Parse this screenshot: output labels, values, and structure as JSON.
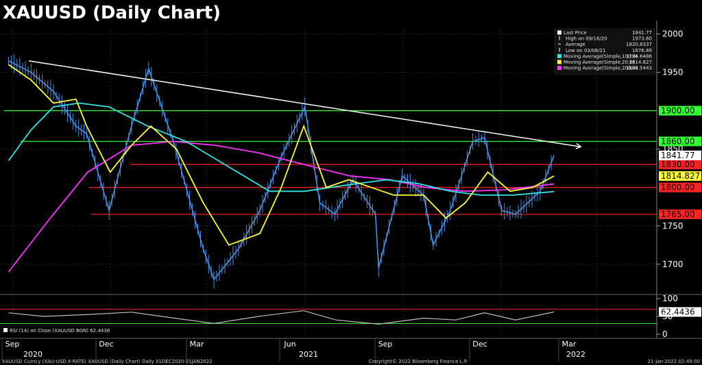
{
  "title": "XAUUSD (Daily Chart)",
  "footer": {
    "left": "XAUUSD Curncy (XAU-USD X-RATE) XAUUSD (Daily Chart)  Daily 31DEC2020-21JAN2022",
    "center": "Copyright© 2022 Bloomberg Finance L.P.",
    "right": "21-Jan-2022 02:49:00"
  },
  "legend": [
    {
      "label": "Last Price",
      "value": "1841.77",
      "marker": "box",
      "color": "#ffffff"
    },
    {
      "label": "High on 09/16/20",
      "value": "1973.60",
      "marker": "tick",
      "color": "#ffffff"
    },
    {
      "label": "Average",
      "value": "1820.8337",
      "marker": "dash",
      "color": "#ffffff"
    },
    {
      "label": "Low on 03/08/21",
      "value": "1676.89",
      "marker": "tick",
      "color": "#ffffff"
    },
    {
      "label": "Moving Average(Simple,100,0)",
      "value": "1794.6486",
      "marker": "box",
      "color": "#2ee6e6"
    },
    {
      "label": "Moving Average(Simple,20,0)",
      "value": "1814.827",
      "marker": "box",
      "color": "#ffff33"
    },
    {
      "label": "Moving Average(Simple,200,0)",
      "value": "1804.5443",
      "marker": "box",
      "color": "#ff33ff"
    }
  ],
  "rsi_label": "RSI (14)  on Close (XAUUSD BGN) 62.4436",
  "colors": {
    "background": "#000000",
    "price": "#4a90e2",
    "ma20": "#ffff33",
    "ma100": "#2ee6e6",
    "ma200": "#ff33ff",
    "resistance": "#33ff33",
    "support": "#ff2222",
    "trendline": "#ffffff",
    "rsi": "#bfbfbf"
  },
  "chart_data": {
    "type": "line",
    "price_axis": {
      "ticks": [
        "2000",
        "1950",
        "1850",
        "1750",
        "1700"
      ],
      "range": [
        1665,
        2005
      ]
    },
    "rsi_axis": {
      "ticks": [
        "100",
        "50",
        "0"
      ],
      "range": [
        0,
        100
      ]
    },
    "x_months": [
      "Sep",
      "Dec",
      "Mar",
      "Jun",
      "Sep",
      "Dec",
      "Mar"
    ],
    "x_years": [
      "2020",
      "2021",
      "2022"
    ],
    "close": {
      "x": [
        "2020-08-28",
        "2020-09-18",
        "2020-10-09",
        "2020-10-30",
        "2020-11-09",
        "2020-11-30",
        "2020-12-21",
        "2021-01-06",
        "2021-01-29",
        "2021-02-26",
        "2021-03-08",
        "2021-03-31",
        "2021-04-20",
        "2021-05-10",
        "2021-06-01",
        "2021-06-15",
        "2021-06-29",
        "2021-07-16",
        "2021-08-06",
        "2021-08-09",
        "2021-08-31",
        "2021-09-20",
        "2021-09-29",
        "2021-10-15",
        "2021-11-05",
        "2021-11-16",
        "2021-12-02",
        "2021-12-15",
        "2022-01-07",
        "2022-01-20"
      ],
      "y": [
        1965,
        1950,
        1925,
        1880,
        1870,
        1770,
        1880,
        1955,
        1860,
        1720,
        1680,
        1720,
        1770,
        1840,
        1905,
        1780,
        1765,
        1810,
        1765,
        1695,
        1815,
        1790,
        1725,
        1770,
        1860,
        1865,
        1770,
        1765,
        1795,
        1841.77
      ]
    },
    "ma20": {
      "x": [
        "2020-08-28",
        "2020-09-18",
        "2020-10-09",
        "2020-10-30",
        "2020-11-09",
        "2020-12-01",
        "2020-12-21",
        "2021-01-08",
        "2021-02-01",
        "2021-02-26",
        "2021-03-22",
        "2021-04-20",
        "2021-05-10",
        "2021-05-31",
        "2021-06-21",
        "2021-07-12",
        "2021-08-02",
        "2021-08-23",
        "2021-09-20",
        "2021-10-11",
        "2021-10-29",
        "2021-11-19",
        "2021-12-10",
        "2021-12-31",
        "2022-01-20"
      ],
      "y": [
        1960,
        1940,
        1910,
        1915,
        1880,
        1820,
        1855,
        1880,
        1850,
        1780,
        1725,
        1740,
        1800,
        1880,
        1800,
        1810,
        1800,
        1790,
        1790,
        1760,
        1780,
        1820,
        1795,
        1800,
        1814.827
      ]
    },
    "ma100": {
      "x": [
        "2020-08-28",
        "2020-09-18",
        "2020-10-09",
        "2020-11-02",
        "2020-11-30",
        "2021-01-05",
        "2021-02-10",
        "2021-03-18",
        "2021-04-29",
        "2021-06-01",
        "2021-06-25",
        "2021-07-20",
        "2021-08-16",
        "2021-09-15",
        "2021-10-15",
        "2021-11-12",
        "2021-12-13",
        "2022-01-20"
      ],
      "y": [
        1835,
        1875,
        1905,
        1910,
        1905,
        1880,
        1860,
        1830,
        1795,
        1795,
        1800,
        1805,
        1810,
        1805,
        1795,
        1790,
        1790,
        1794.6486
      ]
    },
    "ma200": {
      "x": [
        "2020-08-28",
        "2020-10-06",
        "2020-11-10",
        "2020-12-21",
        "2021-01-29",
        "2021-03-09",
        "2021-04-19",
        "2021-05-31",
        "2021-07-13",
        "2021-08-20",
        "2021-09-22",
        "2021-10-28",
        "2021-12-06",
        "2022-01-20"
      ],
      "y": [
        1690,
        1760,
        1820,
        1855,
        1860,
        1855,
        1845,
        1830,
        1815,
        1810,
        1800,
        1795,
        1797,
        1804.5443
      ]
    },
    "rsi": {
      "x": [
        "2020-08-28",
        "2020-09-30",
        "2020-11-09",
        "2020-12-21",
        "2021-01-18",
        "2021-03-08",
        "2021-04-19",
        "2021-05-31",
        "2021-06-30",
        "2021-08-09",
        "2021-09-20",
        "2021-10-20",
        "2021-11-16",
        "2021-12-15",
        "2022-01-20"
      ],
      "y": [
        60,
        50,
        55,
        62,
        50,
        30,
        50,
        66,
        40,
        28,
        45,
        40,
        60,
        40,
        62.4436
      ]
    },
    "horizontal_levels": [
      {
        "value": 1900.0,
        "label": "1900.00",
        "kind": "resistance"
      },
      {
        "value": 1860.0,
        "label": "1860.00",
        "kind": "resistance"
      },
      {
        "value": 1830.0,
        "label": "1830.00",
        "kind": "support"
      },
      {
        "value": 1800.0,
        "label": "1800.00",
        "kind": "support"
      },
      {
        "value": 1765.0,
        "label": "1765.00",
        "kind": "support"
      }
    ],
    "current_tags": [
      {
        "label": "1841.77",
        "value": 1841.77,
        "kind": "last"
      },
      {
        "label": "1814.827",
        "value": 1814.827,
        "kind": "ma20"
      },
      {
        "label": "62.4436",
        "value": 62.4436,
        "kind": "rsi"
      }
    ],
    "trendline": {
      "x": [
        "2020-09-16",
        "2022-02-14"
      ],
      "y": [
        1965,
        1853
      ]
    },
    "grid": true
  }
}
